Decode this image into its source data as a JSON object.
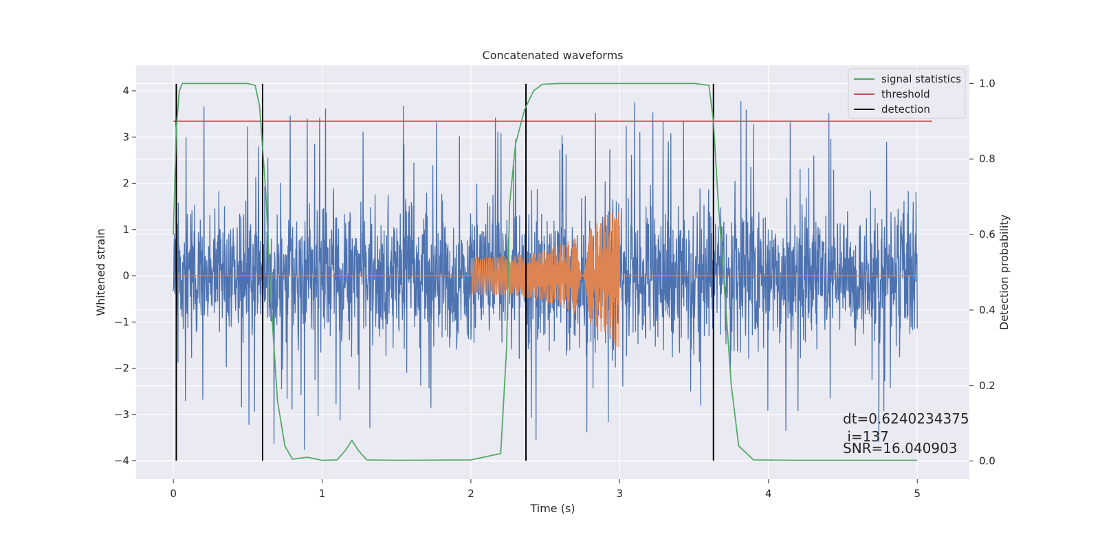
{
  "chart_data": {
    "type": "line",
    "title": "Concatenated waveforms",
    "xlabel": "Time (s)",
    "ylabel_left": "Whitened strain",
    "ylabel_right": "Detection probability",
    "xlim": [
      -0.25,
      5.35
    ],
    "ylim_left": [
      -4.4,
      4.55
    ],
    "ylim_right": [
      -0.048,
      1.048
    ],
    "x_ticks": [
      0,
      1,
      2,
      3,
      4,
      5
    ],
    "x_tick_labels": [
      "0",
      "1",
      "2",
      "3",
      "4",
      "5"
    ],
    "y_left_ticks": [
      -4,
      -3,
      -2,
      -1,
      0,
      1,
      2,
      3,
      4
    ],
    "y_left_tick_labels": [
      "−4",
      "−3",
      "−2",
      "−1",
      "0",
      "1",
      "2",
      "3",
      "4"
    ],
    "y_right_ticks": [
      0.0,
      0.2,
      0.4,
      0.6,
      0.8,
      1.0
    ],
    "y_right_tick_labels": [
      "0.0",
      "0.2",
      "0.4",
      "0.6",
      "0.8",
      "1.0"
    ],
    "grid": true,
    "legend_position": "top-right",
    "series": [
      {
        "name": "",
        "axis": "left",
        "kind": "noise",
        "color": "#4c72b0",
        "x_range": [
          0,
          5
        ],
        "typical_amplitude": 0.75,
        "max_abs": 4.0
      },
      {
        "name": "",
        "axis": "left",
        "kind": "chirp",
        "color": "#dd8452",
        "x_range": [
          0,
          5
        ],
        "chirp_start": 2.0,
        "chirp_end": 3.0,
        "amp_start": 0.42,
        "amp_end": 1.6
      },
      {
        "name": "signal statistics",
        "axis": "right",
        "color": "#55a868",
        "x": [
          0.0,
          0.02,
          0.04,
          0.06,
          0.1,
          0.3,
          0.5,
          0.55,
          0.58,
          0.62,
          0.66,
          0.7,
          0.75,
          0.8,
          0.9,
          1.0,
          1.1,
          1.16,
          1.2,
          1.24,
          1.3,
          1.5,
          2.0,
          2.2,
          2.24,
          2.26,
          2.3,
          2.36,
          2.42,
          2.48,
          2.6,
          3.0,
          3.5,
          3.6,
          3.63,
          3.66,
          3.7,
          3.75,
          3.8,
          3.9,
          4.2,
          4.6,
          5.0
        ],
        "y": [
          0.6,
          0.88,
          0.98,
          1.0,
          1.0,
          1.0,
          1.0,
          0.995,
          0.94,
          0.72,
          0.4,
          0.16,
          0.04,
          0.005,
          0.01,
          0.002,
          0.003,
          0.03,
          0.055,
          0.03,
          0.003,
          0.002,
          0.003,
          0.02,
          0.3,
          0.68,
          0.84,
          0.93,
          0.98,
          0.998,
          1.0,
          1.0,
          1.0,
          0.995,
          0.9,
          0.7,
          0.48,
          0.2,
          0.04,
          0.003,
          0.002,
          0.002,
          0.002
        ]
      },
      {
        "name": "threshold",
        "axis": "right",
        "color": "#c44e52",
        "x": [
          0.0,
          5.1
        ],
        "y": [
          0.9,
          0.9
        ]
      },
      {
        "name": "detection",
        "axis": "left",
        "color": "#000000",
        "kind": "vlines",
        "x": [
          0.02,
          0.6,
          2.37,
          3.63
        ],
        "y_range": [
          -4.0,
          4.15
        ]
      }
    ],
    "annotations": [
      "dt=0.6240234375",
      " i=137",
      "SNR=16.040903"
    ],
    "colors": {
      "background": "#eaeaf2",
      "grid": "#ffffff"
    }
  }
}
